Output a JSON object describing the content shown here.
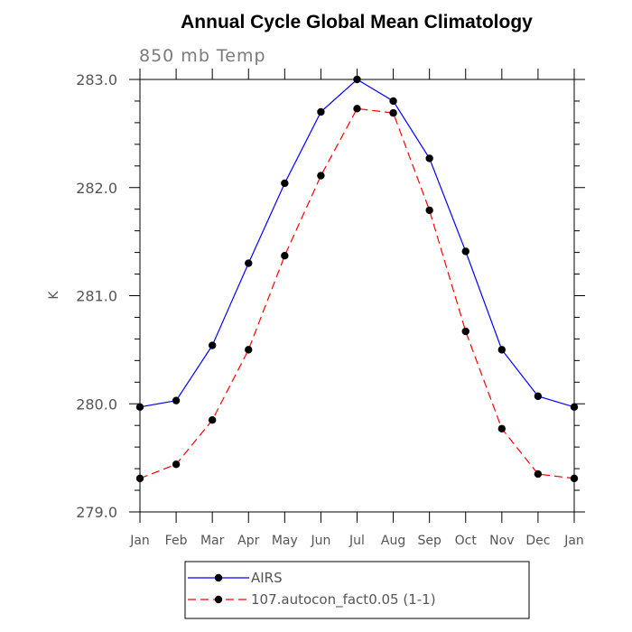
{
  "chart_data": {
    "type": "line",
    "title": "Annual Cycle Global Mean Climatology",
    "subtitle": "850 mb Temp",
    "xlabel": "",
    "ylabel": "K",
    "categories": [
      "Jan",
      "Feb",
      "Mar",
      "Apr",
      "May",
      "Jun",
      "Jul",
      "Aug",
      "Sep",
      "Oct",
      "Nov",
      "Dec",
      "Jan"
    ],
    "ylim": [
      279.0,
      283.0
    ],
    "yticks": [
      "279.0",
      "280.0",
      "281.0",
      "282.0",
      "283.0"
    ],
    "grid": false,
    "legend_placement": "bottom",
    "series": [
      {
        "name": "AIRS",
        "color": "#0000ff",
        "line_style": "solid",
        "marker": "filled-circle",
        "values": [
          279.97,
          280.03,
          280.54,
          281.3,
          282.04,
          282.7,
          283.0,
          282.8,
          282.27,
          281.41,
          280.5,
          280.07,
          279.97
        ]
      },
      {
        "name": "107.autocon_fact0.05 (1-1)",
        "color": "#ff0000",
        "line_style": "dashed",
        "marker": "filled-circle",
        "values": [
          279.31,
          279.44,
          279.85,
          280.5,
          281.37,
          282.11,
          282.73,
          282.69,
          281.79,
          280.67,
          279.77,
          279.35,
          279.31
        ]
      }
    ]
  }
}
